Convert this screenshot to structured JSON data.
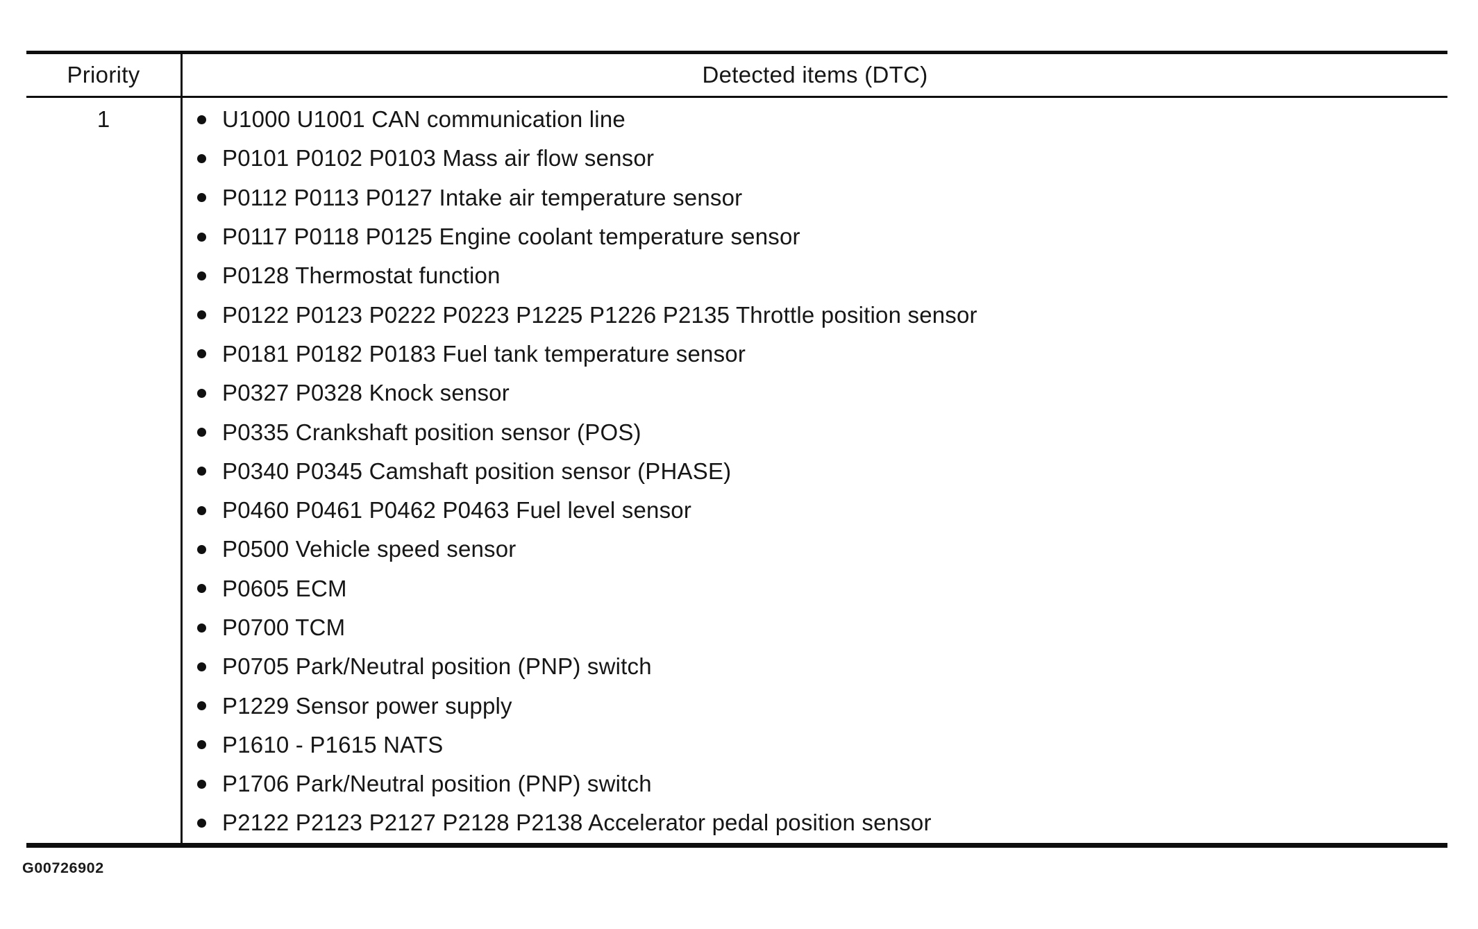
{
  "table": {
    "headers": {
      "priority": "Priority",
      "detected": "Detected items (DTC)"
    },
    "rows": [
      {
        "priority": "1",
        "items": [
          "U1000 U1001 CAN communication line",
          "P0101 P0102 P0103 Mass air flow sensor",
          "P0112 P0113 P0127 Intake air temperature sensor",
          "P0117 P0118 P0125 Engine coolant temperature sensor",
          "P0128 Thermostat function",
          "P0122 P0123 P0222 P0223 P1225 P1226 P2135 Throttle position sensor",
          "P0181 P0182 P0183 Fuel tank temperature sensor",
          "P0327 P0328 Knock sensor",
          "P0335 Crankshaft position sensor (POS)",
          "P0340 P0345 Camshaft position sensor (PHASE)",
          "P0460 P0461 P0462 P0463 Fuel level sensor",
          "P0500 Vehicle speed sensor",
          "P0605 ECM",
          "P0700 TCM",
          "P0705 Park/Neutral position (PNP) switch",
          "P1229 Sensor power supply",
          "P1610 - P1615 NATS",
          "P1706 Park/Neutral position (PNP) switch",
          "P2122 P2123 P2127 P2128 P2138 Accelerator pedal position sensor"
        ]
      }
    ]
  },
  "caption": "G00726902"
}
